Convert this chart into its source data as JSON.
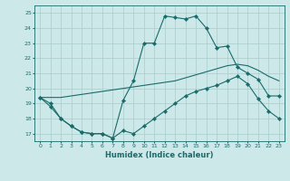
{
  "xlabel": "Humidex (Indice chaleur)",
  "background_color": "#cde8e8",
  "grid_color": "#aacccc",
  "line_color": "#1a6b6b",
  "xlim": [
    -0.5,
    23.5
  ],
  "ylim": [
    16.5,
    25.5
  ],
  "xticks": [
    0,
    1,
    2,
    3,
    4,
    5,
    6,
    7,
    8,
    9,
    10,
    11,
    12,
    13,
    14,
    15,
    16,
    17,
    18,
    19,
    20,
    21,
    22,
    23
  ],
  "yticks": [
    17,
    18,
    19,
    20,
    21,
    22,
    23,
    24,
    25
  ],
  "line_max": [
    19.4,
    19.0,
    18.0,
    17.5,
    17.1,
    17.0,
    17.0,
    16.7,
    19.2,
    20.5,
    23.0,
    23.0,
    24.8,
    24.7,
    24.6,
    24.8,
    24.0,
    22.7,
    22.8,
    21.4,
    21.0,
    20.6,
    19.5,
    19.5
  ],
  "line_mean": [
    19.4,
    19.4,
    19.4,
    19.5,
    19.6,
    19.7,
    19.8,
    19.9,
    20.0,
    20.1,
    20.2,
    20.3,
    20.4,
    20.5,
    20.7,
    20.9,
    21.1,
    21.3,
    21.5,
    21.6,
    21.5,
    21.2,
    20.8,
    20.5
  ],
  "line_min": [
    19.4,
    18.8,
    18.0,
    17.5,
    17.1,
    17.0,
    17.0,
    16.7,
    17.2,
    17.0,
    17.5,
    18.0,
    18.5,
    19.0,
    19.5,
    19.8,
    20.0,
    20.2,
    20.5,
    20.8,
    20.3,
    19.3,
    18.5,
    18.0
  ]
}
